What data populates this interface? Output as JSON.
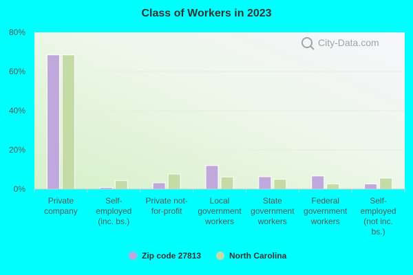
{
  "chart_data": {
    "type": "bar",
    "title": "Class of Workers in 2023",
    "categories": [
      [
        "Private",
        "company"
      ],
      [
        "Self-",
        "employed",
        "(inc. bs.)"
      ],
      [
        "Private not-",
        "for-profit"
      ],
      [
        "Local",
        "government",
        "workers"
      ],
      [
        "State",
        "government",
        "workers"
      ],
      [
        "Federal",
        "government",
        "workers"
      ],
      [
        "Self-",
        "employed",
        "(not inc.",
        "bs.)"
      ]
    ],
    "series": [
      {
        "name": "Zip code 27813",
        "color": "#c0a8dc",
        "values": [
          68.5,
          0.8,
          3.2,
          12.0,
          6.3,
          6.7,
          2.6
        ]
      },
      {
        "name": "North Carolina",
        "color": "#c5dba6",
        "values": [
          68.5,
          4.3,
          7.7,
          6.2,
          5.0,
          2.6,
          5.6
        ]
      }
    ],
    "yticks": [
      "0%",
      "20%",
      "40%",
      "60%",
      "80%"
    ],
    "ylim": [
      0,
      80
    ],
    "ylabel": "",
    "xlabel": "",
    "legend_position": "bottom",
    "grid": true
  },
  "watermark": "City-Data.com",
  "colors": {
    "background": "#00ffff"
  }
}
